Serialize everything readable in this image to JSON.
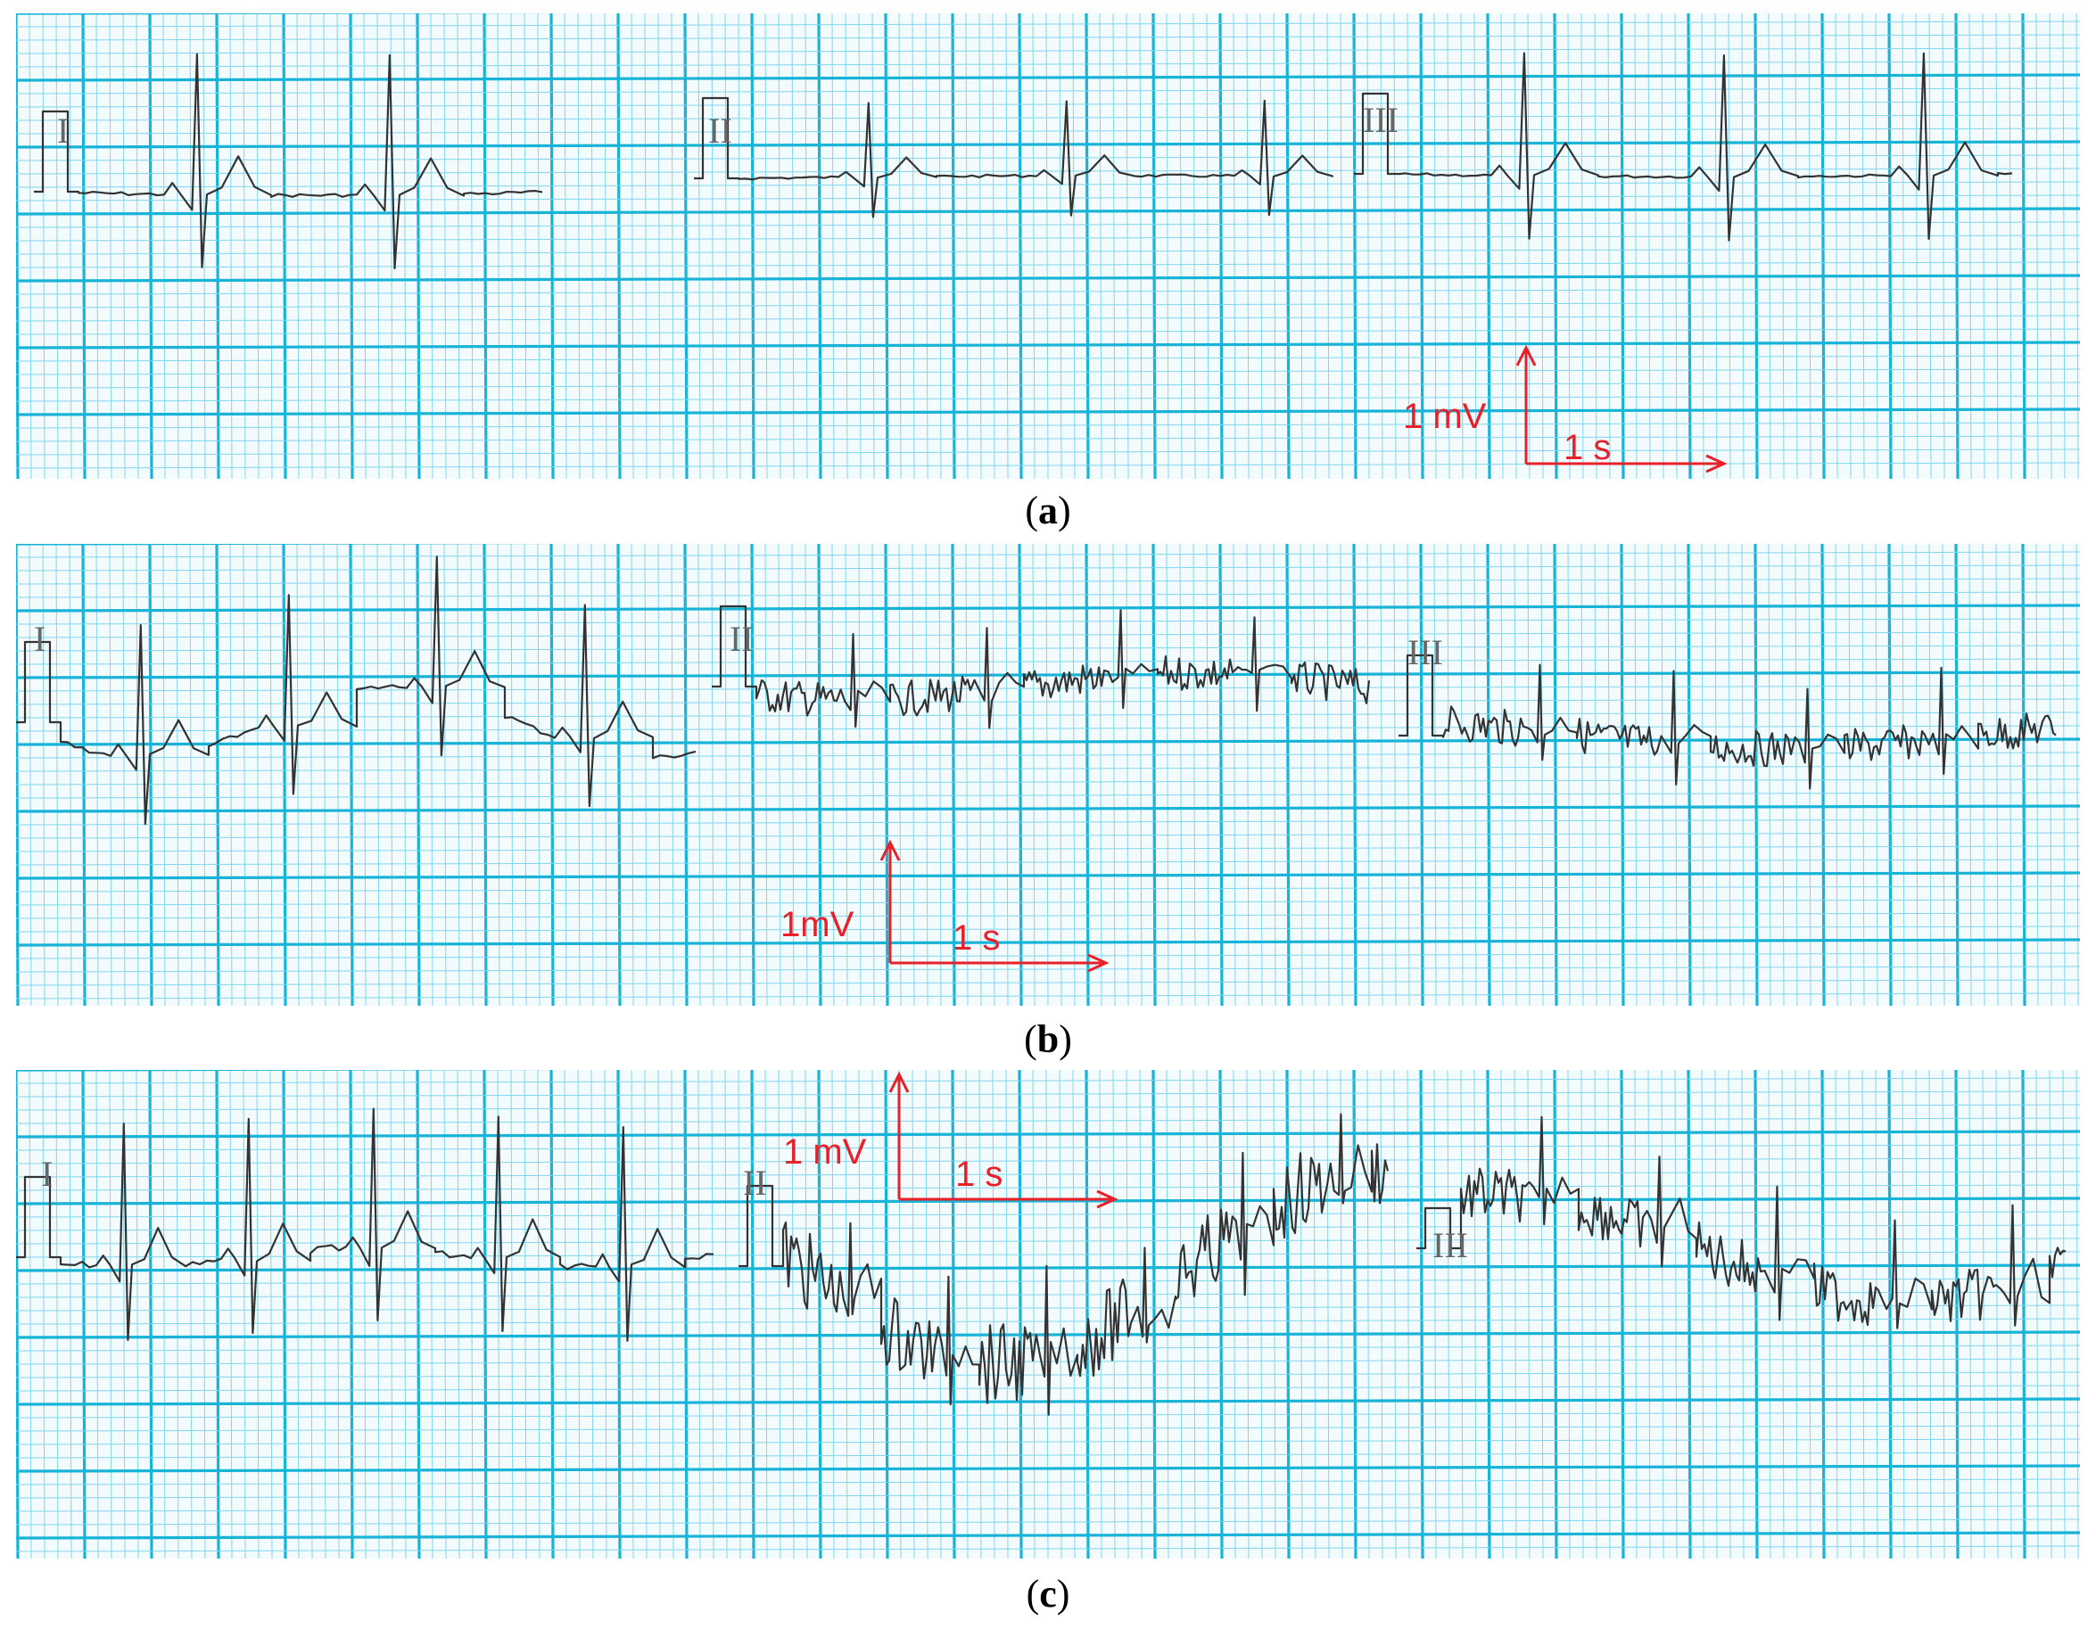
{
  "panels": [
    {
      "id": "a",
      "caption_letter": "a",
      "leads": [
        "I",
        "II",
        "III"
      ],
      "scale": {
        "voltage": "1 mV",
        "time": "1 s"
      }
    },
    {
      "id": "b",
      "caption_letter": "b",
      "leads": [
        "I",
        "II",
        "III"
      ],
      "scale": {
        "voltage": "1mV",
        "time": "1 s"
      }
    },
    {
      "id": "c",
      "caption_letter": "c",
      "leads": [
        "I",
        "II",
        "III"
      ],
      "scale": {
        "voltage": "1 mV",
        "time": "1 s"
      }
    }
  ],
  "colors": {
    "grid_major": "#18b4d8",
    "grid_minor": "#7fd6ee",
    "trace": "#333333",
    "annotation": "#e8202a",
    "lead_label": "#666666"
  }
}
